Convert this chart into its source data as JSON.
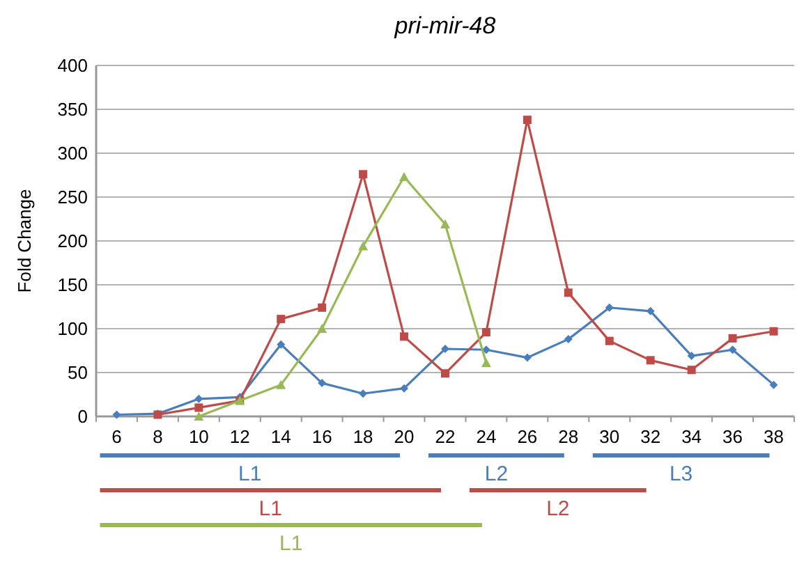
{
  "chart_data": {
    "type": "line",
    "title": "pri-mir-48",
    "ylabel": "Fold Change",
    "categories": [
      "6",
      "8",
      "10",
      "12",
      "14",
      "16",
      "18",
      "20",
      "22",
      "24",
      "26",
      "28",
      "30",
      "32",
      "34",
      "36",
      "38"
    ],
    "series": [
      {
        "color": "#4a7ebb",
        "marker": "diamond",
        "values": [
          2,
          3,
          20,
          22,
          82,
          38,
          26,
          32,
          77,
          76,
          67,
          88,
          124,
          120,
          69,
          76,
          36
        ]
      },
      {
        "color": "#be4b48",
        "marker": "square",
        "values": [
          null,
          2,
          10,
          18,
          111,
          124,
          276,
          91,
          49,
          96,
          338,
          141,
          86,
          64,
          53,
          89,
          97
        ]
      },
      {
        "color": "#98b954",
        "marker": "triangle",
        "values": [
          null,
          null,
          0,
          18,
          36,
          100,
          194,
          273,
          219,
          61,
          null,
          null,
          null,
          null,
          null,
          null,
          null
        ]
      }
    ],
    "ylim": [
      0,
      400
    ],
    "yticks": [
      0,
      50,
      100,
      150,
      200,
      250,
      300,
      350,
      400
    ],
    "grid": "y",
    "annotations": [
      "L1",
      "L2",
      "L3",
      "L1",
      "L2",
      "L1"
    ]
  }
}
